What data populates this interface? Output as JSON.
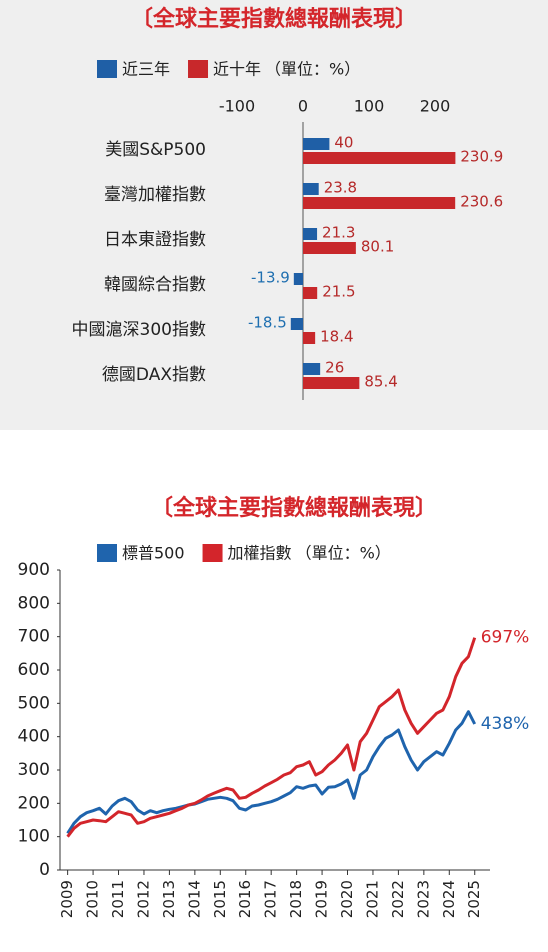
{
  "chart_data": [
    {
      "type": "hbar",
      "title": "〔全球主要指數總報酬表現〕",
      "unit": "（單位：%）",
      "categories": [
        "美國S&P500",
        "臺灣加權指數",
        "日本東證指數",
        "韓國綜合指數",
        "中國滬深300指數",
        "德國DAX指數"
      ],
      "series": [
        {
          "name": "近三年",
          "color": "#1f5fa6",
          "values": [
            40,
            23.8,
            21.3,
            -13.9,
            -18.5,
            26
          ]
        },
        {
          "name": "近十年",
          "color": "#c8282b",
          "values": [
            230.9,
            230.6,
            80.1,
            21.5,
            18.4,
            85.4
          ]
        }
      ],
      "xlim": [
        -100,
        250
      ],
      "xticks": [
        -100,
        0,
        100,
        200
      ]
    },
    {
      "type": "line",
      "title": "〔全球主要指數總報酬表現〕",
      "unit": "（單位：%）",
      "x": [
        2009,
        2009.25,
        2009.5,
        2009.75,
        2010,
        2010.25,
        2010.5,
        2010.75,
        2011,
        2011.25,
        2011.5,
        2011.75,
        2012,
        2012.25,
        2012.5,
        2012.75,
        2013,
        2013.25,
        2013.5,
        2013.75,
        2014,
        2014.25,
        2014.5,
        2014.75,
        2015,
        2015.25,
        2015.5,
        2015.75,
        2016,
        2016.25,
        2016.5,
        2016.75,
        2017,
        2017.25,
        2017.5,
        2017.75,
        2018,
        2018.25,
        2018.5,
        2018.75,
        2019,
        2019.25,
        2019.5,
        2019.75,
        2020,
        2020.25,
        2020.5,
        2020.75,
        2021,
        2021.25,
        2021.5,
        2021.75,
        2022,
        2022.25,
        2022.5,
        2022.75,
        2023,
        2023.25,
        2023.5,
        2023.75,
        2024,
        2024.25,
        2024.5,
        2024.75,
        2025
      ],
      "series": [
        {
          "name": "標普500",
          "color": "#1f64ad",
          "end_label": "438%",
          "values": [
            110,
            140,
            160,
            172,
            178,
            185,
            168,
            192,
            208,
            215,
            205,
            180,
            168,
            178,
            172,
            178,
            182,
            185,
            190,
            195,
            198,
            205,
            212,
            215,
            218,
            215,
            208,
            185,
            180,
            192,
            195,
            200,
            205,
            212,
            222,
            232,
            250,
            245,
            252,
            255,
            228,
            248,
            250,
            258,
            270,
            215,
            285,
            300,
            340,
            370,
            395,
            405,
            420,
            370,
            330,
            300,
            325,
            340,
            355,
            345,
            380,
            420,
            440,
            475,
            438
          ]
        },
        {
          "name": "加權指數",
          "color": "#d3252b",
          "end_label": "697%",
          "values": [
            100,
            125,
            140,
            145,
            150,
            148,
            145,
            160,
            175,
            170,
            165,
            140,
            145,
            155,
            160,
            165,
            170,
            178,
            185,
            195,
            200,
            210,
            222,
            230,
            238,
            245,
            240,
            215,
            218,
            230,
            240,
            252,
            262,
            272,
            285,
            292,
            310,
            315,
            325,
            285,
            295,
            315,
            330,
            350,
            375,
            300,
            385,
            410,
            450,
            490,
            505,
            520,
            540,
            480,
            440,
            410,
            430,
            450,
            470,
            480,
            520,
            580,
            620,
            640,
            697
          ]
        }
      ],
      "xlim": [
        2008.7,
        2025.6
      ],
      "xticks": [
        2009,
        2010,
        2011,
        2012,
        2013,
        2014,
        2015,
        2016,
        2017,
        2018,
        2019,
        2020,
        2021,
        2022,
        2023,
        2024,
        2025
      ],
      "ylim": [
        0,
        900
      ],
      "yticks": [
        0,
        100,
        200,
        300,
        400,
        500,
        600,
        700,
        800,
        900
      ]
    }
  ]
}
